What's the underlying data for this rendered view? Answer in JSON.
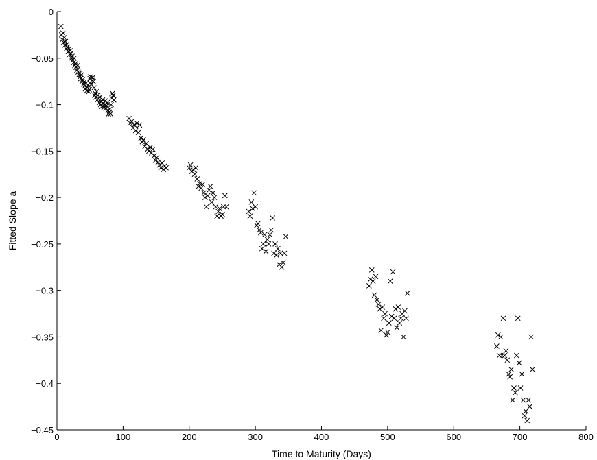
{
  "chart_data": {
    "type": "scatter",
    "title": "",
    "xlabel": "Time to Maturity (Days)",
    "ylabel": "Fitted Slope a",
    "xlim": [
      0,
      800
    ],
    "ylim": [
      -0.45,
      0
    ],
    "x_ticks": [
      0,
      100,
      200,
      300,
      400,
      500,
      600,
      700,
      800
    ],
    "y_ticks": [
      0,
      -0.05,
      -0.1,
      -0.15,
      -0.2,
      -0.25,
      -0.3,
      -0.35,
      -0.4,
      -0.45
    ],
    "x_tick_labels": [
      "0",
      "100",
      "200",
      "300",
      "400",
      "500",
      "600",
      "700",
      "800"
    ],
    "y_tick_labels": [
      "0",
      "−0.05",
      "−0.1",
      "−0.15",
      "−0.2",
      "−0.25",
      "−0.3",
      "−0.35",
      "−0.4",
      "−0.45"
    ],
    "grid": false,
    "marker": "x",
    "marker_color": "#000000",
    "series": [
      {
        "x": [
          6,
          7,
          8,
          9,
          10,
          11,
          12,
          13,
          14,
          15,
          16,
          17,
          18,
          19,
          20,
          21,
          22,
          23,
          24,
          25,
          26,
          27,
          28,
          29,
          30,
          31,
          32,
          33,
          34,
          35,
          36,
          37,
          38,
          39,
          40,
          41,
          42,
          43,
          44,
          45,
          46,
          47,
          48,
          49,
          50,
          51,
          52,
          53,
          54,
          55,
          56,
          57,
          58,
          59,
          60,
          61,
          62,
          63,
          64,
          65,
          66,
          67,
          68,
          69,
          70,
          71,
          72,
          73,
          74,
          75,
          76,
          77,
          78,
          79,
          80,
          81,
          82,
          83,
          84,
          85,
          86,
          109,
          111,
          113,
          115,
          117,
          119,
          121,
          123,
          125,
          127,
          129,
          131,
          133,
          135,
          137,
          139,
          141,
          143,
          145,
          147,
          149,
          151,
          153,
          155,
          157,
          159,
          161,
          163,
          165,
          200,
          202,
          204,
          206,
          208,
          210,
          212,
          214,
          216,
          218,
          220,
          222,
          224,
          226,
          228,
          230,
          232,
          234,
          236,
          238,
          240,
          242,
          244,
          246,
          248,
          250,
          252,
          254,
          256,
          290,
          292,
          294,
          296,
          298,
          300,
          302,
          304,
          306,
          308,
          310,
          312,
          314,
          316,
          318,
          320,
          322,
          324,
          326,
          328,
          330,
          332,
          334,
          336,
          338,
          340,
          342,
          344,
          346,
          472,
          474,
          476,
          478,
          480,
          482,
          484,
          486,
          488,
          490,
          492,
          494,
          496,
          498,
          500,
          502,
          504,
          506,
          508,
          510,
          512,
          514,
          516,
          518,
          520,
          522,
          524,
          526,
          528,
          530,
          665,
          667,
          669,
          671,
          673,
          675,
          677,
          679,
          681,
          683,
          685,
          687,
          689,
          691,
          693,
          695,
          697,
          699,
          701,
          703,
          705,
          707,
          709,
          711,
          713,
          715,
          717,
          719
        ],
        "y": [
          -0.016,
          -0.025,
          -0.03,
          -0.023,
          -0.033,
          -0.028,
          -0.036,
          -0.032,
          -0.04,
          -0.035,
          -0.038,
          -0.043,
          -0.04,
          -0.046,
          -0.042,
          -0.045,
          -0.05,
          -0.048,
          -0.052,
          -0.055,
          -0.05,
          -0.058,
          -0.056,
          -0.06,
          -0.063,
          -0.058,
          -0.065,
          -0.068,
          -0.066,
          -0.07,
          -0.072,
          -0.068,
          -0.075,
          -0.073,
          -0.078,
          -0.076,
          -0.08,
          -0.083,
          -0.077,
          -0.085,
          -0.082,
          -0.079,
          -0.086,
          -0.084,
          -0.072,
          -0.07,
          -0.078,
          -0.074,
          -0.071,
          -0.075,
          -0.082,
          -0.09,
          -0.088,
          -0.092,
          -0.086,
          -0.095,
          -0.09,
          -0.093,
          -0.098,
          -0.092,
          -0.1,
          -0.097,
          -0.102,
          -0.095,
          -0.099,
          -0.103,
          -0.1,
          -0.096,
          -0.104,
          -0.101,
          -0.098,
          -0.106,
          -0.11,
          -0.108,
          -0.105,
          -0.11,
          -0.1,
          -0.093,
          -0.088,
          -0.09,
          -0.095,
          -0.115,
          -0.12,
          -0.118,
          -0.125,
          -0.122,
          -0.128,
          -0.12,
          -0.13,
          -0.122,
          -0.136,
          -0.14,
          -0.138,
          -0.145,
          -0.142,
          -0.148,
          -0.15,
          -0.146,
          -0.152,
          -0.148,
          -0.155,
          -0.16,
          -0.157,
          -0.162,
          -0.165,
          -0.168,
          -0.163,
          -0.17,
          -0.166,
          -0.168,
          -0.168,
          -0.165,
          -0.172,
          -0.17,
          -0.175,
          -0.168,
          -0.18,
          -0.188,
          -0.185,
          -0.19,
          -0.186,
          -0.195,
          -0.2,
          -0.21,
          -0.198,
          -0.192,
          -0.188,
          -0.205,
          -0.195,
          -0.2,
          -0.21,
          -0.22,
          -0.215,
          -0.212,
          -0.22,
          -0.218,
          -0.21,
          -0.198,
          -0.21,
          -0.215,
          -0.22,
          -0.205,
          -0.212,
          -0.195,
          -0.21,
          -0.23,
          -0.228,
          -0.235,
          -0.238,
          -0.255,
          -0.25,
          -0.24,
          -0.258,
          -0.245,
          -0.25,
          -0.24,
          -0.235,
          -0.222,
          -0.26,
          -0.25,
          -0.262,
          -0.255,
          -0.272,
          -0.26,
          -0.275,
          -0.27,
          -0.26,
          -0.242,
          -0.295,
          -0.288,
          -0.278,
          -0.29,
          -0.305,
          -0.285,
          -0.31,
          -0.315,
          -0.32,
          -0.343,
          -0.318,
          -0.33,
          -0.325,
          -0.348,
          -0.345,
          -0.335,
          -0.29,
          -0.328,
          -0.28,
          -0.33,
          -0.32,
          -0.34,
          -0.318,
          -0.335,
          -0.33,
          -0.325,
          -0.35,
          -0.322,
          -0.33,
          -0.303,
          -0.36,
          -0.348,
          -0.37,
          -0.35,
          -0.37,
          -0.33,
          -0.37,
          -0.365,
          -0.375,
          -0.39,
          -0.393,
          -0.385,
          -0.418,
          -0.405,
          -0.41,
          -0.37,
          -0.33,
          -0.378,
          -0.405,
          -0.39,
          -0.418,
          -0.435,
          -0.43,
          -0.44,
          -0.418,
          -0.425,
          -0.35,
          -0.385
        ]
      }
    ]
  }
}
